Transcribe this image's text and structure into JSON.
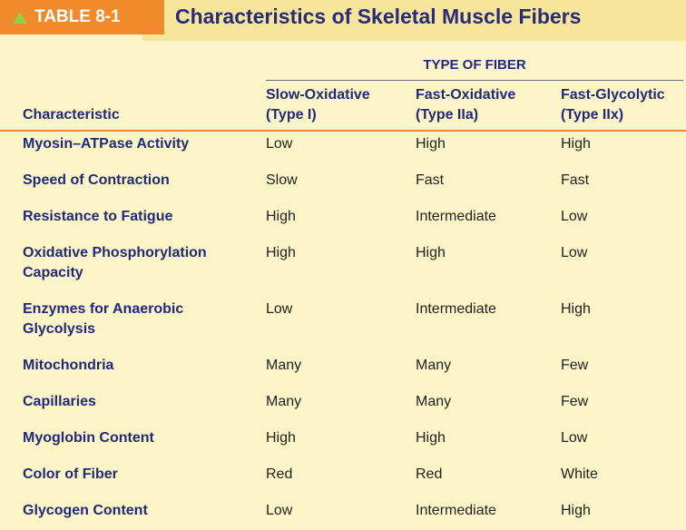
{
  "header": {
    "tag_label": "TABLE 8-1",
    "title": "Characteristics of Skeletal Muscle Fibers"
  },
  "table": {
    "group_header": "TYPE OF FIBER",
    "columns": {
      "characteristic": "Characteristic",
      "col1_line1": "Slow-Oxidative",
      "col1_line2": "(Type I)",
      "col2_line1": "Fast-Oxidative",
      "col2_line2": "(Type IIa)",
      "col3_line1": "Fast-Glycolytic",
      "col3_line2": "(Type IIx)"
    },
    "rows": [
      {
        "label": "Myosin–ATPase Activity",
        "v1": "Low",
        "v2": "High",
        "v3": "High"
      },
      {
        "label": "Speed of Contraction",
        "v1": "Slow",
        "v2": "Fast",
        "v3": "Fast"
      },
      {
        "label": "Resistance to Fatigue",
        "v1": "High",
        "v2": "Intermediate",
        "v3": "Low"
      },
      {
        "label": "Oxidative Phosphorylation Capacity",
        "v1": "High",
        "v2": "High",
        "v3": "Low"
      },
      {
        "label": "Enzymes for Anaerobic Glycolysis",
        "v1": "Low",
        "v2": "Intermediate",
        "v3": "High"
      },
      {
        "label": "Mitochondria",
        "v1": "Many",
        "v2": "Many",
        "v3": "Few"
      },
      {
        "label": "Capillaries",
        "v1": "Many",
        "v2": "Many",
        "v3": "Few"
      },
      {
        "label": "Myoglobin Content",
        "v1": "High",
        "v2": "High",
        "v3": "Low"
      },
      {
        "label": "Color of Fiber",
        "v1": "Red",
        "v2": "Red",
        "v3": "White"
      },
      {
        "label": "Glycogen Content",
        "v1": "Low",
        "v2": "Intermediate",
        "v3": "High"
      }
    ]
  },
  "colors": {
    "tag_bg": "#f08a2a",
    "title_band": "#f6e59a",
    "page_bg": "#fdf5c8",
    "heading_text": "#1f2a7a",
    "accent_rule": "#e8883b",
    "triangle": "#8fcf4a"
  }
}
